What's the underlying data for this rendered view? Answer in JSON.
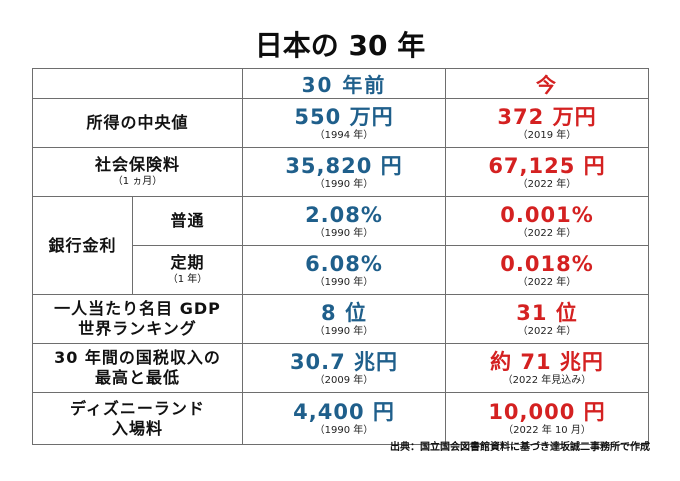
{
  "title": "日本の 30 年",
  "columns": {
    "old": "30 年前",
    "now": "今"
  },
  "rows": [
    {
      "label": "所得の中央値",
      "old_value": "550 万円",
      "old_year": "（1994 年）",
      "now_value": "372 万円",
      "now_year": "（2019 年）"
    },
    {
      "label": "社会保険料",
      "note": "（1 ヵ月）",
      "old_value": "35,820 円",
      "old_year": "（1990 年）",
      "now_value": "67,125 円",
      "now_year": "（2022 年）"
    },
    {
      "group_label": "銀行金利",
      "sub_label": "普通",
      "old_value": "2.08%",
      "old_year": "（1990 年）",
      "now_value": "0.001%",
      "now_year": "（2022 年）"
    },
    {
      "sub_label": "定期",
      "sub_note": "（1 年）",
      "old_value": "6.08%",
      "old_year": "（1990 年）",
      "now_value": "0.018%",
      "now_year": "（2022 年）"
    },
    {
      "label_line1": "一人当たり名目 GDP",
      "label_line2": "世界ランキング",
      "old_value": "8 位",
      "old_year": "（1990 年）",
      "now_value": "31 位",
      "now_year": "（2022 年）"
    },
    {
      "label_line1": "30 年間の国税収入の",
      "label_line2": "最高と最低",
      "old_value": "30.7 兆円",
      "old_year": "（2009 年）",
      "now_value": "約 71 兆円",
      "now_year": "（2022 年見込み）"
    },
    {
      "label_line1": "ディズニーランド",
      "label_line2": "入場料",
      "old_value": "4,400 円",
      "old_year": "（1990 年）",
      "now_value": "10,000 円",
      "now_year": "（2022 年 10 月）"
    }
  ],
  "source": "出典：国立国会図書館資料に基づき達坂誠二事務所で作成",
  "colors": {
    "old": "#1f5f8b",
    "now": "#d42121",
    "border": "#6e6e6e"
  }
}
